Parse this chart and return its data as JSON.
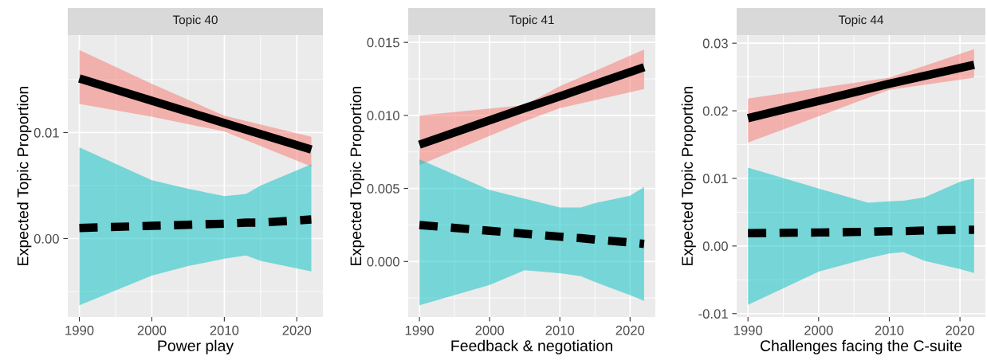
{
  "chart_data": [
    {
      "type": "line",
      "title": "Topic 40",
      "xlabel": "Power play",
      "ylabel": "Expected Topic Proportion",
      "grid": true,
      "xlim": [
        1988.4,
        2023.6
      ],
      "xticks": [
        1990,
        2000,
        2010,
        2020
      ],
      "ylim": [
        -0.0074,
        0.0192
      ],
      "yticks": [
        {
          "value": 0,
          "label": "0.00"
        },
        {
          "value": 0.01,
          "label": "0.01"
        }
      ],
      "series": [
        {
          "color": "#000000",
          "line_style": "solid",
          "x": [
            1990,
            2000,
            2010,
            2022
          ],
          "values": [
            0.0151,
            0.013,
            0.0109,
            0.0084
          ],
          "lower": [
            0.0127,
            0.0115,
            0.0101,
            0.0068
          ],
          "upper": [
            0.0178,
            0.0146,
            0.0116,
            0.0096
          ]
        },
        {
          "color": "#000000",
          "line_style": "dashed",
          "x": [
            1990,
            2000,
            2005,
            2010,
            2013,
            2015,
            2022
          ],
          "values": [
            0.001,
            0.0012,
            0.0013,
            0.0014,
            0.0015,
            0.0015,
            0.0018
          ],
          "lower": [
            -0.0063,
            -0.0035,
            -0.0026,
            -0.0019,
            -0.0016,
            -0.0021,
            -0.0031
          ],
          "upper": [
            0.0086,
            0.0055,
            0.0047,
            0.004,
            0.0042,
            0.005,
            0.007
          ]
        }
      ]
    },
    {
      "type": "line",
      "title": "Topic 41",
      "xlabel": "Feedback & negotiation",
      "ylabel": "Expected Topic Proportion",
      "grid": true,
      "xlim": [
        1988.4,
        2023.6
      ],
      "xticks": [
        1990,
        2000,
        2010,
        2020
      ],
      "ylim": [
        -0.0038,
        0.0155
      ],
      "yticks": [
        {
          "value": 0,
          "label": "0.000"
        },
        {
          "value": 0.005,
          "label": "0.005"
        },
        {
          "value": 0.01,
          "label": "0.010"
        },
        {
          "value": 0.015,
          "label": "0.015"
        }
      ],
      "series": [
        {
          "color": "#000000",
          "line_style": "solid",
          "x": [
            1990,
            2005,
            2010,
            2022
          ],
          "values": [
            0.008,
            0.0105,
            0.0113,
            0.0133
          ],
          "lower": [
            0.0066,
            0.0096,
            0.0105,
            0.0118
          ],
          "upper": [
            0.01,
            0.0107,
            0.012,
            0.0145
          ]
        },
        {
          "color": "#000000",
          "line_style": "dashed",
          "x": [
            1990,
            2000,
            2005,
            2010,
            2013,
            2015,
            2020,
            2022
          ],
          "values": [
            0.0025,
            0.0021,
            0.0019,
            0.0017,
            0.0016,
            0.0015,
            0.0013,
            0.0012
          ],
          "lower": [
            -0.003,
            -0.0016,
            -0.0006,
            -0.0008,
            -0.001,
            -0.0014,
            -0.0023,
            -0.0027
          ],
          "upper": [
            0.007,
            0.0049,
            0.0043,
            0.0037,
            0.0037,
            0.004,
            0.0045,
            0.0051
          ]
        }
      ]
    },
    {
      "type": "line",
      "title": "Topic 44",
      "xlabel": "Challenges facing the C-suite",
      "ylabel": "Expected Topic Proportion",
      "grid": true,
      "xlim": [
        1988.4,
        2023.6
      ],
      "xticks": [
        1990,
        2000,
        2010,
        2020
      ],
      "ylim": [
        -0.0105,
        0.0312
      ],
      "yticks": [
        {
          "value": -0.01,
          "label": "-0.01"
        },
        {
          "value": 0,
          "label": "0.00"
        },
        {
          "value": 0.01,
          "label": "0.01"
        },
        {
          "value": 0.02,
          "label": "0.02"
        },
        {
          "value": 0.03,
          "label": "0.03"
        }
      ],
      "series": [
        {
          "color": "#000000",
          "line_style": "solid",
          "x": [
            1990,
            2010,
            2022
          ],
          "values": [
            0.0189,
            0.024,
            0.0268
          ],
          "lower": [
            0.0153,
            0.0231,
            0.0249
          ],
          "upper": [
            0.0218,
            0.0249,
            0.0291
          ]
        },
        {
          "color": "#000000",
          "line_style": "dashed",
          "x": [
            1990,
            2000,
            2007,
            2010,
            2012,
            2015,
            2020,
            2022
          ],
          "values": [
            0.0019,
            0.002,
            0.0021,
            0.0022,
            0.0022,
            0.0023,
            0.0024,
            0.0024
          ],
          "lower": [
            -0.0087,
            -0.0038,
            -0.0018,
            -0.0011,
            -0.0009,
            -0.0022,
            -0.0034,
            -0.004
          ],
          "upper": [
            0.0116,
            0.0085,
            0.0064,
            0.0066,
            0.0067,
            0.0072,
            0.0095,
            0.01
          ]
        }
      ]
    }
  ]
}
